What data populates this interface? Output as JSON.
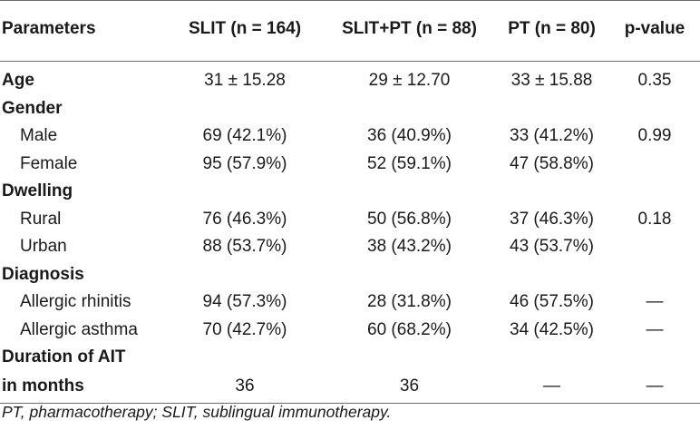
{
  "table": {
    "headers": [
      "Parameters",
      "SLIT (n = 164)",
      "SLIT+PT (n = 88)",
      "PT (n = 80)",
      "p-value"
    ],
    "rows": {
      "age": {
        "label": "Age",
        "slit": "31 ± 15.28",
        "slit_pt": "29 ± 12.70",
        "pt": "33 ± 15.88",
        "p": "0.35"
      },
      "gender": {
        "label": "Gender"
      },
      "male": {
        "label": "Male",
        "slit": "69 (42.1%)",
        "slit_pt": "36 (40.9%)",
        "pt": "33 (41.2%)",
        "p": "0.99"
      },
      "female": {
        "label": "Female",
        "slit": "95 (57.9%)",
        "slit_pt": "52 (59.1%)",
        "pt": "47 (58.8%)",
        "p": ""
      },
      "dwelling": {
        "label": "Dwelling"
      },
      "rural": {
        "label": "Rural",
        "slit": "76 (46.3%)",
        "slit_pt": "50 (56.8%)",
        "pt": "37 (46.3%)",
        "p": "0.18"
      },
      "urban": {
        "label": "Urban",
        "slit": "88 (53.7%)",
        "slit_pt": "38 (43.2%)",
        "pt": "43 (53.7%)",
        "p": ""
      },
      "diagnosis": {
        "label": "Diagnosis"
      },
      "rhinitis": {
        "label": "Allergic rhinitis",
        "slit": "94 (57.3%)",
        "slit_pt": "28 (31.8%)",
        "pt": "46 (57.5%)",
        "p": "—"
      },
      "asthma": {
        "label": "Allergic asthma",
        "slit": "70 (42.7%)",
        "slit_pt": "60 (68.2%)",
        "pt": "34 (42.5%)",
        "p": "—"
      },
      "duration": {
        "label_line1": "Duration of AIT",
        "label_line2": "in months",
        "slit": "36",
        "slit_pt": "36",
        "pt": "—",
        "p": "—"
      }
    }
  },
  "footnote": "PT, pharmacotherapy; SLIT, sublingual immunotherapy."
}
